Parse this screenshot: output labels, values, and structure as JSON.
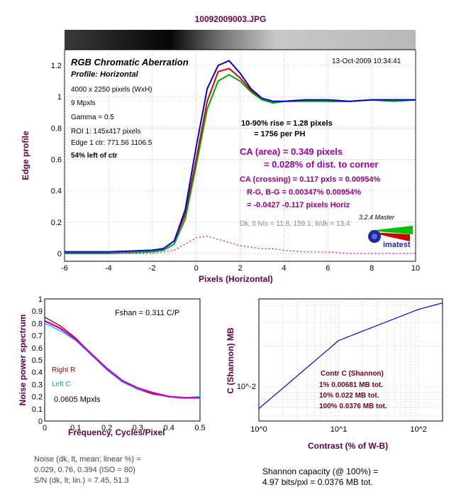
{
  "header": {
    "filename": "10092009003.JPG"
  },
  "panel1": {
    "title": "RGB Chromatic Aberration",
    "profile": "Profile: Horizontal",
    "timestamp": "13-Oct-2009 10:34:41",
    "info_lines": [
      "4000 x 2250 pixels (WxH)",
      "9 Mpxls",
      "Gamma = 0.5",
      "ROI 1: 145x417 pixels",
      "Edge 1 ctr: 771.56  1106.5"
    ],
    "left_of_ctr": "54% left of ctr",
    "rise_line1": "10-90% rise = 1.28 pixels",
    "rise_line2": "= 1756 per PH",
    "ca_area1": "CA (area) = 0.349 pixels",
    "ca_area2": "= 0.028% of dist. to corner",
    "ca_crossing": "CA (crossing) = 0.117 pxls = 0.00954%",
    "rg_bg": "R-G, B-G = 0.00347%  0.00954%",
    "rg_bg_px": "= -0.0427  -0.117 pixels Horiz",
    "dk_levels": "Dk, lt lvls = 11.8, 159.1;  lt/dk = 13.4",
    "version": "3.2.4  Master",
    "logo": "imatest"
  },
  "panel2": {
    "fshan": "Fshan = 0.311 C/P",
    "legend_r": "Right R",
    "legend_c": "Left  C",
    "mpxls": "0.0605 Mpxls"
  },
  "panel3": {
    "table_header": "Contr     C (Shannon)",
    "rows": [
      "1%      0.00681 MB tot.",
      "10%      0.022 MB tot.",
      "100%    0.0376 MB tot."
    ]
  },
  "bottom": {
    "noise1": "Noise (dk, lt, mean; linear %) =",
    "noise2": "0.029,  0.76,  0.394  (ISO =  80)",
    "noise3": "S/N (dk, lt; lin.) = 7.45,  51.3",
    "shannon1": "Shannon capacity (@ 100%) =",
    "shannon2": "4.97 bits/pxl = 0.0376 MB tot."
  },
  "colors": {
    "red": "#dd0000",
    "green": "#00aa00",
    "blue": "#0000dd",
    "magenta": "#cc00cc",
    "cyan": "#00cccc",
    "darkred": "#aa0000"
  },
  "chart_data": [
    {
      "type": "line",
      "title": "RGB Chromatic Aberration",
      "xlabel": "Pixels (Horizontal)",
      "ylabel": "Edge profile",
      "xlim": [
        -6,
        10
      ],
      "ylim": [
        -0.05,
        1.3
      ],
      "xticks": [
        -6,
        -4,
        -2,
        0,
        2,
        4,
        6,
        8,
        10
      ],
      "yticks": [
        0,
        0.2,
        0.4,
        0.6,
        0.8,
        1,
        1.2
      ],
      "grid": true,
      "x": [
        -6,
        -4,
        -2,
        -1.5,
        -1,
        -0.5,
        0,
        0.5,
        1,
        1.5,
        2,
        2.5,
        3,
        3.5,
        4,
        5,
        6,
        7,
        8,
        9,
        10
      ],
      "series": [
        {
          "name": "R",
          "color": "red",
          "values": [
            0.01,
            0.01,
            0.02,
            0.03,
            0.08,
            0.25,
            0.6,
            0.97,
            1.16,
            1.18,
            1.12,
            1.04,
            0.99,
            0.97,
            0.97,
            0.98,
            0.97,
            0.97,
            0.98,
            0.98,
            0.98
          ]
        },
        {
          "name": "G",
          "color": "green",
          "values": [
            0.0,
            0.0,
            0.01,
            0.02,
            0.06,
            0.22,
            0.56,
            0.92,
            1.1,
            1.14,
            1.1,
            1.03,
            0.98,
            0.96,
            0.97,
            0.97,
            0.97,
            0.97,
            0.98,
            0.97,
            0.98
          ]
        },
        {
          "name": "B",
          "color": "blue",
          "values": [
            0.01,
            0.01,
            0.02,
            0.03,
            0.08,
            0.28,
            0.68,
            1.05,
            1.2,
            1.23,
            1.15,
            1.05,
            0.99,
            0.97,
            0.97,
            0.98,
            0.98,
            0.97,
            0.98,
            0.98,
            0.98
          ]
        },
        {
          "name": "Diff",
          "color": "magenta",
          "dashed": true,
          "values": [
            0.0,
            0.0,
            0.0,
            0.01,
            0.02,
            0.06,
            0.1,
            0.11,
            0.09,
            0.07,
            0.05,
            0.04,
            0.03,
            0.03,
            0.02,
            0.01,
            0.01,
            0.0,
            0.0,
            0.0,
            0.0
          ]
        }
      ]
    },
    {
      "type": "line",
      "xlabel": "Frequency, Cycles/Pixel",
      "ylabel": "Noise power spectrum",
      "xlim": [
        0,
        0.5
      ],
      "ylim": [
        0,
        1
      ],
      "xticks": [
        0,
        0.1,
        0.2,
        0.3,
        0.4,
        0.5
      ],
      "yticks": [
        0,
        0.1,
        0.2,
        0.3,
        0.4,
        0.5,
        0.6,
        0.7,
        0.8,
        0.9,
        1
      ],
      "x": [
        0.0,
        0.05,
        0.1,
        0.15,
        0.2,
        0.25,
        0.3,
        0.35,
        0.4,
        0.45,
        0.5
      ],
      "series": [
        {
          "name": "Right R",
          "color": "darkred",
          "values": [
            0.85,
            0.78,
            0.68,
            0.55,
            0.42,
            0.32,
            0.26,
            0.22,
            0.2,
            0.19,
            0.2
          ]
        },
        {
          "name": "Left C",
          "color": "cyan",
          "values": [
            0.8,
            0.74,
            0.66,
            0.54,
            0.42,
            0.32,
            0.26,
            0.23,
            0.2,
            0.19,
            0.2
          ]
        },
        {
          "name": "Fit",
          "color": "magenta",
          "values": [
            0.82,
            0.76,
            0.67,
            0.55,
            0.43,
            0.33,
            0.27,
            0.23,
            0.2,
            0.19,
            0.19
          ]
        }
      ]
    },
    {
      "type": "line",
      "xlabel": "Contrast (% of W-B)",
      "ylabel": "C (Shannon) MB",
      "xscale": "log",
      "yscale": "log",
      "xticks": [
        "10^0",
        "10^1",
        "10^2"
      ],
      "yticks": [
        "10^-2"
      ],
      "x": [
        1,
        10,
        100,
        200
      ],
      "series": [
        {
          "name": "Shannon",
          "color": "blue",
          "values": [
            0.00681,
            0.022,
            0.0376,
            0.042
          ]
        }
      ]
    }
  ]
}
